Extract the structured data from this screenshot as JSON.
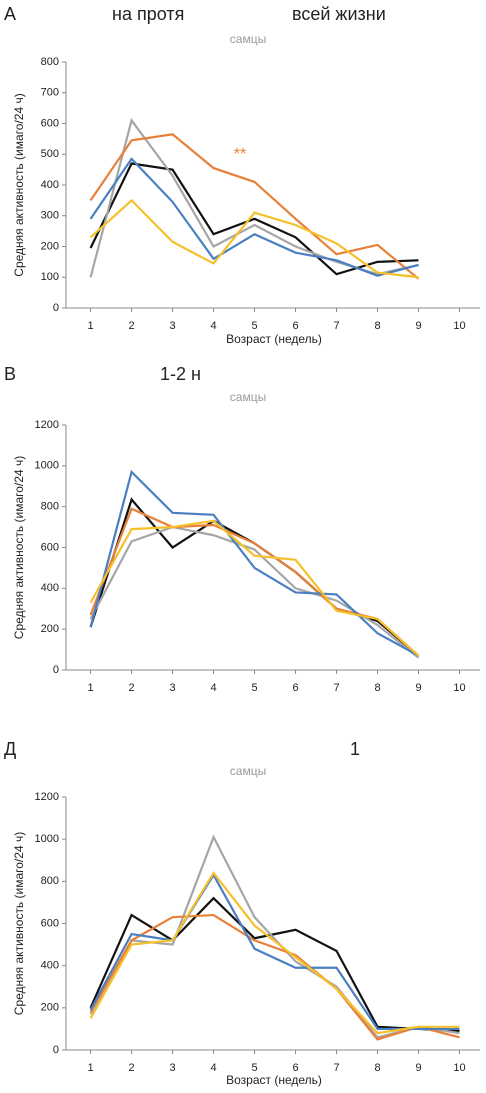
{
  "chart_data": [
    {
      "type": "line",
      "panel": "А",
      "title": [
        "на протя",
        "всей жизни"
      ],
      "subtitle": "самцы",
      "annotation": "**",
      "annotation_color": "#e8803a",
      "y_label": "Средняя активность (имаго/24 ч)",
      "x_label": "Возраст (недель)",
      "x": [
        1,
        2,
        3,
        4,
        5,
        6,
        7,
        8,
        9
      ],
      "xlim": [
        0.4,
        10.5
      ],
      "xticks": [
        1,
        2,
        3,
        4,
        5,
        6,
        7,
        8,
        9,
        10
      ],
      "ylim": [
        0,
        800
      ],
      "yticks": [
        0,
        100,
        200,
        300,
        400,
        500,
        600,
        700,
        800
      ],
      "series": [
        {
          "color": "#111111",
          "values": [
            195,
            470,
            450,
            240,
            290,
            230,
            110,
            150,
            155
          ]
        },
        {
          "color": "#a6a6a6",
          "values": [
            100,
            610,
            430,
            200,
            270,
            200,
            150,
            110,
            140
          ]
        },
        {
          "color": "#e8803a",
          "values": [
            350,
            545,
            565,
            455,
            410,
            290,
            175,
            205,
            95
          ]
        },
        {
          "color": "#4a7fc1",
          "values": [
            290,
            485,
            345,
            160,
            240,
            180,
            155,
            105,
            140
          ]
        },
        {
          "color": "#f5c02a",
          "values": [
            230,
            350,
            215,
            145,
            310,
            270,
            210,
            115,
            100
          ]
        }
      ]
    },
    {
      "type": "line",
      "panel": "В",
      "title": [
        "1-2 н"
      ],
      "subtitle": "самцы",
      "y_label": "Средняя активность (имаго/24 ч)",
      "x": [
        1,
        2,
        3,
        4,
        5,
        6,
        7,
        8,
        9
      ],
      "xlim": [
        0.4,
        10.5
      ],
      "xticks": [
        1,
        2,
        3,
        4,
        5,
        6,
        7,
        8,
        9,
        10
      ],
      "ylim": [
        0,
        1200
      ],
      "yticks": [
        0,
        200,
        400,
        600,
        800,
        1000,
        1200
      ],
      "series": [
        {
          "color": "#111111",
          "values": [
            210,
            835,
            600,
            730,
            620,
            480,
            300,
            240,
            70
          ]
        },
        {
          "color": "#a6a6a6",
          "values": [
            250,
            630,
            700,
            660,
            590,
            400,
            340,
            220,
            60
          ]
        },
        {
          "color": "#e8803a",
          "values": [
            270,
            790,
            700,
            710,
            620,
            480,
            300,
            250,
            70
          ]
        },
        {
          "color": "#4a7fc1",
          "values": [
            210,
            970,
            770,
            760,
            500,
            380,
            370,
            180,
            70
          ]
        },
        {
          "color": "#f5c02a",
          "values": [
            330,
            690,
            700,
            730,
            560,
            540,
            290,
            250,
            70
          ]
        }
      ]
    },
    {
      "type": "line",
      "panel": "Д",
      "title": [
        "1"
      ],
      "subtitle": "самцы",
      "y_label": "Средняя активность (имаго/24 ч)",
      "x_label": "Возраст (недель)",
      "x": [
        1,
        2,
        3,
        4,
        5,
        6,
        7,
        8,
        9,
        10
      ],
      "xlim": [
        0.4,
        10.5
      ],
      "xticks": [
        1,
        2,
        3,
        4,
        5,
        6,
        7,
        8,
        9,
        10
      ],
      "ylim": [
        0,
        1200
      ],
      "yticks": [
        0,
        200,
        400,
        600,
        800,
        1000,
        1200
      ],
      "series": [
        {
          "color": "#111111",
          "values": [
            200,
            640,
            520,
            720,
            530,
            570,
            470,
            110,
            100,
            90
          ]
        },
        {
          "color": "#a6a6a6",
          "values": [
            170,
            520,
            500,
            1010,
            630,
            420,
            300,
            60,
            110,
            80
          ]
        },
        {
          "color": "#e8803a",
          "values": [
            180,
            520,
            630,
            640,
            520,
            450,
            290,
            50,
            110,
            60
          ]
        },
        {
          "color": "#4a7fc1",
          "values": [
            190,
            550,
            520,
            830,
            480,
            390,
            390,
            100,
            100,
            100
          ]
        },
        {
          "color": "#f5c02a",
          "values": [
            150,
            500,
            520,
            840,
            590,
            440,
            290,
            80,
            110,
            110
          ]
        }
      ]
    }
  ]
}
